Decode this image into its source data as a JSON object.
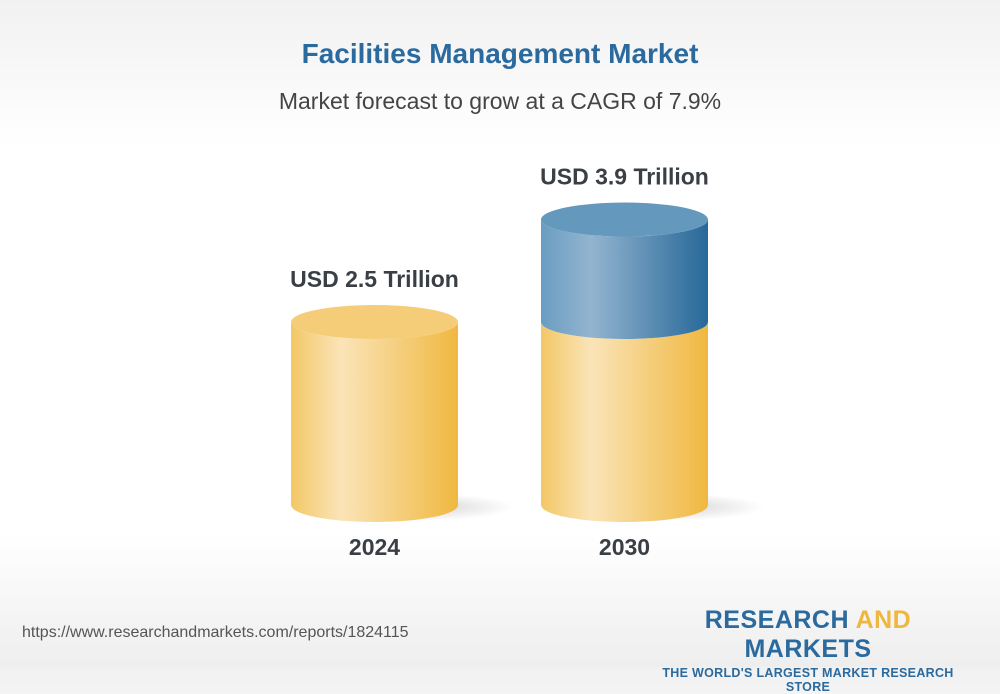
{
  "header": {
    "title": "Facilities Management Market",
    "subtitle": "Market forecast to grow at a CAGR of 7.9%"
  },
  "chart_data": {
    "type": "bar",
    "style": "3d-cylinder",
    "title": "Facilities Management Market",
    "subtitle": "Market forecast to grow at a CAGR of 7.9%",
    "categories": [
      "2024",
      "2030"
    ],
    "values": [
      2.5,
      3.9
    ],
    "unit": "USD Trillion",
    "data_labels": [
      "USD 2.5 Trillion",
      "USD 3.9 Trillion"
    ],
    "growth_segment_color": "#2a6a9e",
    "base_color": "#f2bb45",
    "grid": false,
    "legend": "none"
  },
  "footer": {
    "url": "https://www.researchandmarkets.com/reports/1824115",
    "logo": {
      "word1": "RESEARCH",
      "word2": "AND",
      "word3": "MARKETS",
      "tagline": "THE WORLD'S LARGEST MARKET RESEARCH STORE"
    }
  }
}
